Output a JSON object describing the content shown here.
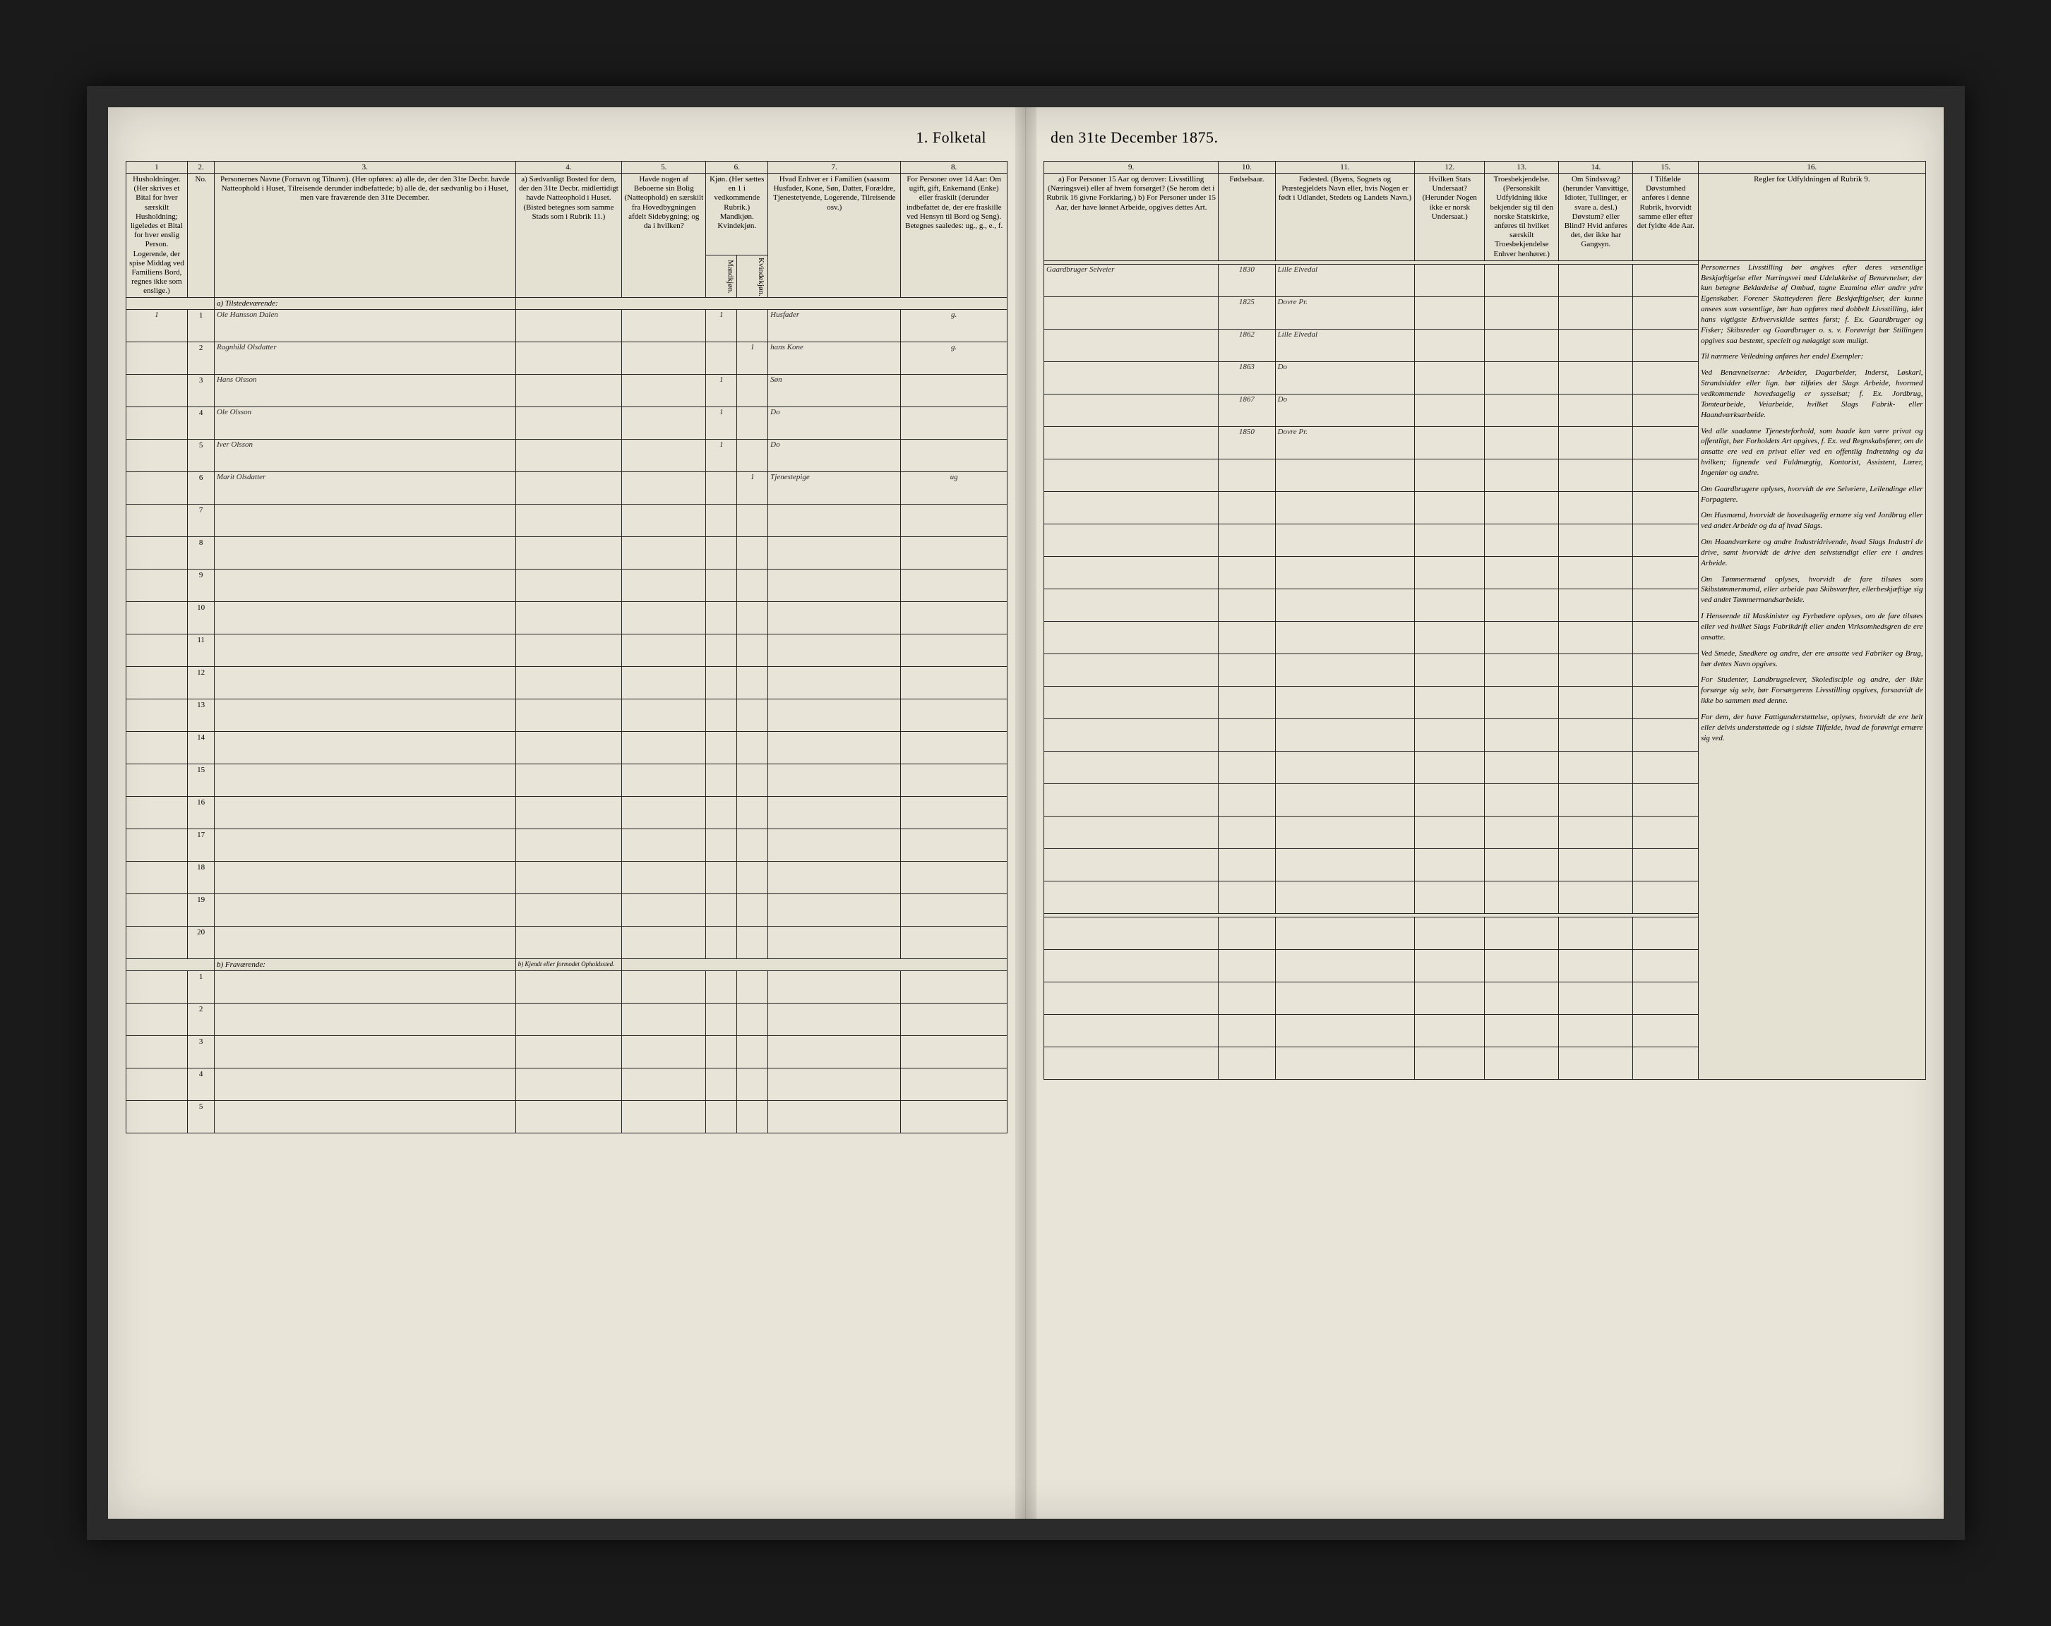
{
  "title_left": "1. Folketal",
  "title_right": "den 31te December 1875.",
  "left_columns": {
    "c1": "1",
    "c2": "2.",
    "c3": "3.",
    "c4": "4.",
    "c5": "5.",
    "c6": "6.",
    "c7": "7.",
    "c8": "8."
  },
  "left_headers": {
    "h1": "Husholdninger. (Her skrives et Bital for hver særskilt Husholdning; ligeledes et Bital for hver enslig Person. Logerende, der spise Middag ved Familiens Bord, regnes ikke som enslige.)",
    "h2": "No.",
    "h3": "Personernes Navne (Fornavn og Tilnavn). (Her opføres: a) alle de, der den 31te Decbr. havde Natteophold i Huset, Tilreisende derunder indbefattede; b) alle de, der sædvanlig bo i Huset, men vare fraværende den 31te December.",
    "h4": "a) Sædvanligt Bosted for dem, der den 31te Decbr. midlertidigt havde Natteophold i Huset. (Bisted betegnes som samme Stads som i Rubrik 11.)",
    "h5": "Havde nogen af Beboerne sin Bolig (Natteophold) en særskilt fra Hovedbygningen afdelt Sidebygning; og da i hvilken?",
    "h6": "Kjøn. (Her sættes en 1 i vedkommende Rubrik.) Mandkjøn. Kvindekjøn.",
    "h7": "Hvad Enhver er i Familien (saasom Husfader, Kone, Søn, Datter, Forældre, Tjenestetyende, Logerende, Tilreisende osv.)",
    "h8": "For Personer over 14 Aar: Om ugift, gift, Enkemand (Enke) eller fraskilt (derunder indbefattet de, der ere fraskille ved Hensyn til Bord og Seng). Betegnes saaledes: ug., g., e., f."
  },
  "right_columns": {
    "c9": "9.",
    "c10": "10.",
    "c11": "11.",
    "c12": "12.",
    "c13": "13.",
    "c14": "14.",
    "c15": "15.",
    "c16": "16."
  },
  "right_headers": {
    "h9": "a) For Personer 15 Aar og derover: Livsstilling (Næringsvei) eller af hvem forsørget? (Se herom det i Rubrik 16 givne Forklaring.) b) For Personer under 15 Aar, der have lønnet Arbeide, opgives dettes Art.",
    "h10": "Fødselsaar.",
    "h11": "Fødested. (Byens, Sognets og Præstegjeldets Navn eller, hvis Nogen er født i Udlandet, Stedets og Landets Navn.)",
    "h12": "Hvilken Stats Undersaat? (Herunder Nogen ikke er norsk Undersaat.)",
    "h13": "Troesbekjendelse. (Personskilt Udfyldning ikke bekjender sig til den norske Statskirke, anføres til hvilket særskilt Troesbekjendelse Enhver henhører.)",
    "h14": "Om Sindssvag? (herunder Vanvittige, Idioter, Tullinger, er svare a. desl.) Døvstum? eller Blind? Hvid anføres det, der ikke har Gangsyn.",
    "h15": "I Tilfælde Døvstumhed anføres i denne Rubrik, hvorvidt samme eller efter det fyldte 4de Aar.",
    "h16_title": "Regler for Udfyldningen af Rubrik 9."
  },
  "section_a": "a) Tilstedeværende:",
  "section_b": "b) Fraværende:",
  "section_b4": "b) Kjendt eller formodet Opholdssted.",
  "rows": [
    {
      "n": "1",
      "hh": "1",
      "name": "Ole Hansson Dalen",
      "c4": "",
      "c5": "",
      "c6a": "1",
      "c6b": "",
      "rel": "Husfader",
      "stat": "g.",
      "occ": "Gaardbruger Selveier",
      "year": "1830",
      "place": "Lille Elvedal"
    },
    {
      "n": "2",
      "hh": "",
      "name": "Ragnhild Olsdatter",
      "c4": "",
      "c5": "",
      "c6a": "",
      "c6b": "1",
      "rel": "hans Kone",
      "stat": "g.",
      "occ": "",
      "year": "1825",
      "place": "Dovre Pr."
    },
    {
      "n": "3",
      "hh": "",
      "name": "Hans Olsson",
      "c4": "",
      "c5": "",
      "c6a": "1",
      "c6b": "",
      "rel": "Søn",
      "stat": "",
      "occ": "",
      "year": "1862",
      "place": "Lille Elvedal"
    },
    {
      "n": "4",
      "hh": "",
      "name": "Ole Olsson",
      "c4": "",
      "c5": "",
      "c6a": "1",
      "c6b": "",
      "rel": "Do",
      "stat": "",
      "occ": "",
      "year": "1863",
      "place": "Do"
    },
    {
      "n": "5",
      "hh": "",
      "name": "Iver Olsson",
      "c4": "",
      "c5": "",
      "c6a": "1",
      "c6b": "",
      "rel": "Do",
      "stat": "",
      "occ": "",
      "year": "1867",
      "place": "Do"
    },
    {
      "n": "6",
      "hh": "",
      "name": "Marit Olsdatter",
      "c4": "",
      "c5": "",
      "c6a": "",
      "c6b": "1",
      "rel": "Tjenestepige",
      "stat": "ug",
      "occ": "",
      "year": "1850",
      "place": "Dovre Pr."
    }
  ],
  "blank_rows_a": [
    "7",
    "8",
    "9",
    "10",
    "11",
    "12",
    "13",
    "14",
    "15",
    "16",
    "17",
    "18",
    "19",
    "20"
  ],
  "blank_rows_b": [
    "1",
    "2",
    "3",
    "4",
    "5"
  ],
  "instructions": [
    "Personernes Livsstilling bør angives efter deres væsentlige Beskjæftigelse eller Næringsvei med Udelukkelse af Benævnelser, der kun betegne Beklædelse af Ombud, tagne Examina eller andre ydre Egenskaber. Forener Skatteyderen flere Beskjæftigelser, der kunne ansees som væsentlige, bør han opføres med dobbelt Livsstilling, idet hans vigtigste Erhvervskilde sættes først; f. Ex. Gaardbruger og Fisker; Skibsreder og Gaardbruger o. s. v. Forøvrigt bør Stillingen opgives saa bestemt, specielt og nøiagtigt som muligt.",
    "Til nærmere Veiledning anføres her endel Exempler:",
    "Ved Benævnelserne: Arbeider, Dagarbeider, Inderst, Løskarl, Strandsidder eller lign. bør tilføies det Slags Arbeide, hvormed vedkommende hovedsagelig er sysselsat; f. Ex. Jordbrug, Tomtearbeide, Veiarbeide, hvilket Slags Fabrik- eller Haandværksarbeide.",
    "Ved alle saadanne Tjenesteforhold, som baade kan være privat og offentligt, bør Forholdets Art opgives, f. Ex. ved Regnskabsfører, om de ansatte ere ved en privat eller ved en offentlig Indretning og da hvilken; lignende ved Fuldmægtig, Kontorist, Assistent, Lærer, Ingeniør og andre.",
    "Om Gaardbrugere oplyses, hvorvidt de ere Selveiere, Leilendinge eller Forpagtere.",
    "Om Husmænd, hvorvidt de hovedsagelig ernære sig ved Jordbrug eller ved andet Arbeide og da af hvad Slags.",
    "Om Haandværkere og andre Industridrivende, hvad Slags Industri de drive, samt hvorvidt de drive den selvstændigt eller ere i andres Arbeide.",
    "Om Tømmermænd oplyses, hvorvidt de fare tilsøes som Skibstømmermænd, eller arbeide paa Skibsværfter, ellerbeskjæftige sig ved andet Tømmermandsarbeide.",
    "I Henseende til Maskinister og Fyrbødere oplyses, om de fare tilsøes eller ved hvilket Slags Fabrikdrift eller anden Virksomhedsgren de ere ansatte.",
    "Ved Smede, Snedkere og andre, der ere ansatte ved Fabriker og Brug, bør dettes Navn opgives.",
    "For Studenter, Landbrugselever, Skoledisciple og andre, der ikke forsørge sig selv, bør Forsørgerens Livsstilling opgives, forsaavidt de ikke bo sammen med denne.",
    "For dem, der have Fattigunderstøttelse, oplyses, hvorvidt de ere helt eller delvis understøttede og i sidste Tilfælde, hvad de forøvrigt ernære sig ved."
  ]
}
